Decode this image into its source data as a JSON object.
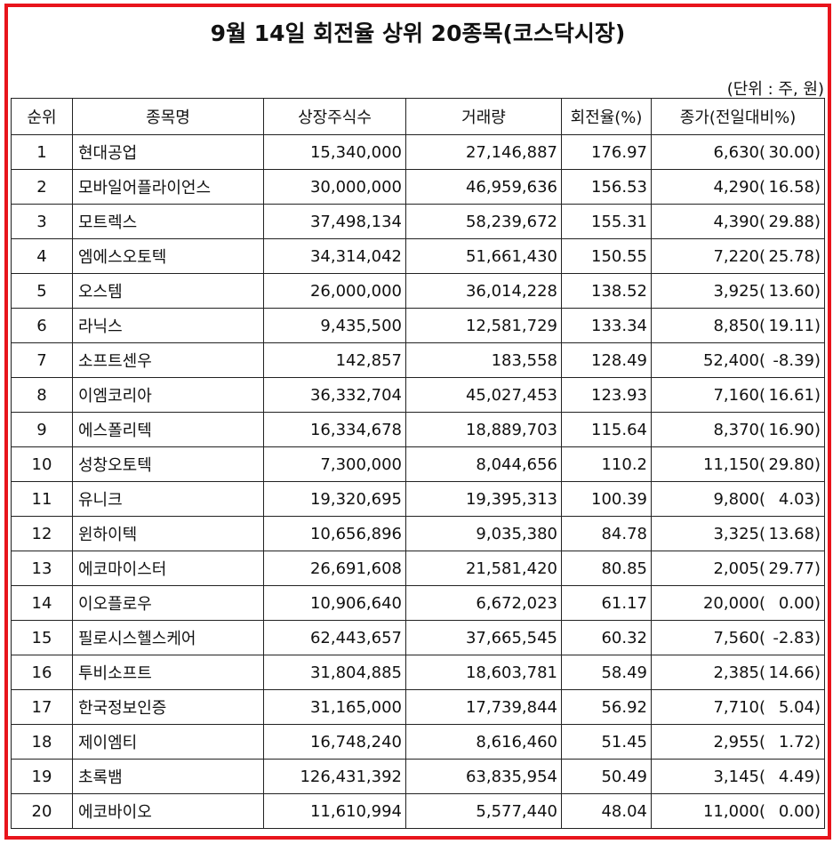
{
  "title": "9월 14일 회전율 상위 20종목(코스닥시장)",
  "unit": "(단위 : 주, 원)",
  "colors": {
    "border": "#e8141c"
  },
  "headers": [
    "순위",
    "종목명",
    "상장주식수",
    "거래량",
    "회전율(%)",
    "종가(전일대비%)"
  ],
  "rows": [
    {
      "rank": "1",
      "name": "현대공업",
      "listed": "15,340,000",
      "volume": "27,146,887",
      "turnover": "176.97",
      "price": "6,630(",
      "change": "30.00)"
    },
    {
      "rank": "2",
      "name": "모바일어플라이언스",
      "listed": "30,000,000",
      "volume": "46,959,636",
      "turnover": "156.53",
      "price": "4,290(",
      "change": "16.58)"
    },
    {
      "rank": "3",
      "name": "모트렉스",
      "listed": "37,498,134",
      "volume": "58,239,672",
      "turnover": "155.31",
      "price": "4,390(",
      "change": "29.88)"
    },
    {
      "rank": "4",
      "name": "엠에스오토텍",
      "listed": "34,314,042",
      "volume": "51,661,430",
      "turnover": "150.55",
      "price": "7,220(",
      "change": "25.78)"
    },
    {
      "rank": "5",
      "name": "오스템",
      "listed": "26,000,000",
      "volume": "36,014,228",
      "turnover": "138.52",
      "price": "3,925(",
      "change": "13.60)"
    },
    {
      "rank": "6",
      "name": "라닉스",
      "listed": "9,435,500",
      "volume": "12,581,729",
      "turnover": "133.34",
      "price": "8,850(",
      "change": "19.11)"
    },
    {
      "rank": "7",
      "name": "소프트센우",
      "listed": "142,857",
      "volume": "183,558",
      "turnover": "128.49",
      "price": "52,400(",
      "change": "-8.39)"
    },
    {
      "rank": "8",
      "name": "이엠코리아",
      "listed": "36,332,704",
      "volume": "45,027,453",
      "turnover": "123.93",
      "price": "7,160(",
      "change": "16.61)"
    },
    {
      "rank": "9",
      "name": "에스폴리텍",
      "listed": "16,334,678",
      "volume": "18,889,703",
      "turnover": "115.64",
      "price": "8,370(",
      "change": "16.90)"
    },
    {
      "rank": "10",
      "name": "성창오토텍",
      "listed": "7,300,000",
      "volume": "8,044,656",
      "turnover": "110.2",
      "price": "11,150(",
      "change": "29.80)"
    },
    {
      "rank": "11",
      "name": "유니크",
      "listed": "19,320,695",
      "volume": "19,395,313",
      "turnover": "100.39",
      "price": "9,800(",
      "change": "4.03)"
    },
    {
      "rank": "12",
      "name": "윈하이텍",
      "listed": "10,656,896",
      "volume": "9,035,380",
      "turnover": "84.78",
      "price": "3,325(",
      "change": "13.68)"
    },
    {
      "rank": "13",
      "name": "에코마이스터",
      "listed": "26,691,608",
      "volume": "21,581,420",
      "turnover": "80.85",
      "price": "2,005(",
      "change": "29.77)"
    },
    {
      "rank": "14",
      "name": "이오플로우",
      "listed": "10,906,640",
      "volume": "6,672,023",
      "turnover": "61.17",
      "price": "20,000(",
      "change": "0.00)"
    },
    {
      "rank": "15",
      "name": "필로시스헬스케어",
      "listed": "62,443,657",
      "volume": "37,665,545",
      "turnover": "60.32",
      "price": "7,560(",
      "change": "-2.83)"
    },
    {
      "rank": "16",
      "name": "투비소프트",
      "listed": "31,804,885",
      "volume": "18,603,781",
      "turnover": "58.49",
      "price": "2,385(",
      "change": "14.66)"
    },
    {
      "rank": "17",
      "name": "한국정보인증",
      "listed": "31,165,000",
      "volume": "17,739,844",
      "turnover": "56.92",
      "price": "7,710(",
      "change": "5.04)"
    },
    {
      "rank": "18",
      "name": "제이엠티",
      "listed": "16,748,240",
      "volume": "8,616,460",
      "turnover": "51.45",
      "price": "2,955(",
      "change": "1.72)"
    },
    {
      "rank": "19",
      "name": "초록뱀",
      "listed": "126,431,392",
      "volume": "63,835,954",
      "turnover": "50.49",
      "price": "3,145(",
      "change": "4.49)"
    },
    {
      "rank": "20",
      "name": "에코바이오",
      "listed": "11,610,994",
      "volume": "5,577,440",
      "turnover": "48.04",
      "price": "11,000(",
      "change": "0.00)"
    }
  ]
}
